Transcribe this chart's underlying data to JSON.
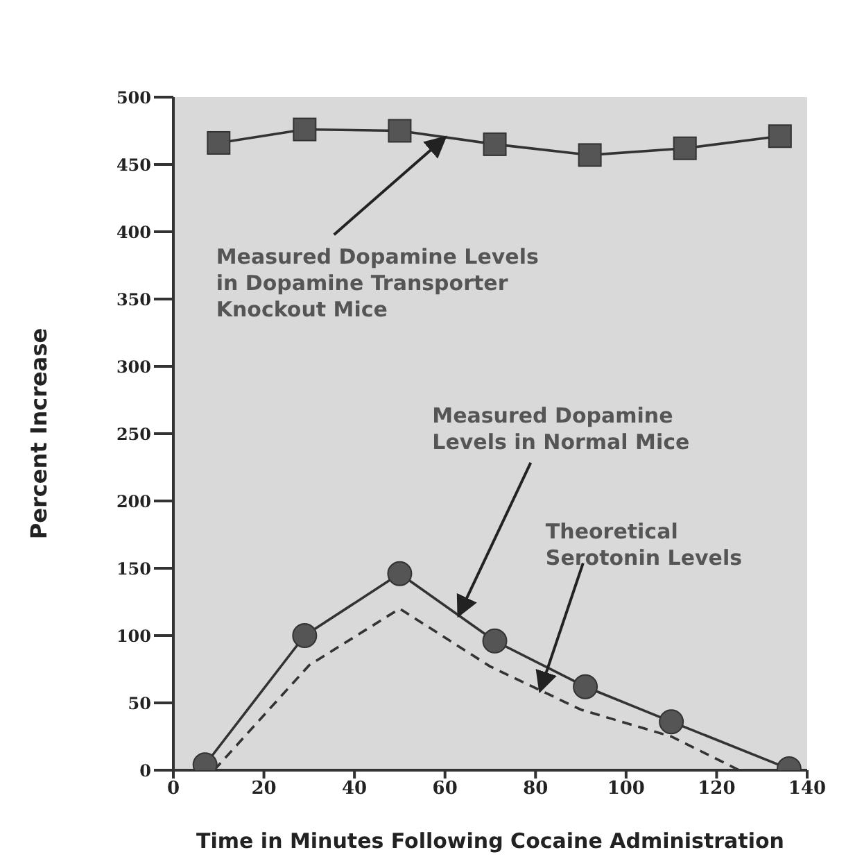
{
  "chart_data": {
    "type": "line",
    "xlabel": "Time in Minutes Following Cocaine Administration",
    "ylabel": "Percent Increase",
    "xlim": [
      0,
      140
    ],
    "xticks": [
      0,
      20,
      40,
      60,
      80,
      100,
      120,
      140
    ],
    "ylim": [
      0,
      500
    ],
    "yticks": [
      0,
      50,
      100,
      150,
      200,
      250,
      300,
      350,
      400,
      450,
      500
    ],
    "grid": false,
    "series": [
      {
        "color": "#333333",
        "marker": "square",
        "line_style": "solid",
        "x": [
          10,
          29,
          50,
          71,
          92,
          113,
          134
        ],
        "values": [
          466,
          476,
          475,
          465,
          457,
          462,
          471
        ]
      },
      {
        "color": "#333333",
        "marker": "circle",
        "line_style": "solid",
        "x": [
          7,
          29,
          50,
          71,
          91,
          110,
          136
        ],
        "values": [
          4,
          100,
          146,
          96,
          62,
          36,
          1
        ]
      },
      {
        "color": "#333333",
        "marker": "none",
        "line_style": "dashed",
        "x": [
          9,
          30,
          50,
          70,
          90,
          110,
          125
        ],
        "values": [
          0,
          78,
          120,
          77,
          45,
          25,
          0
        ]
      }
    ],
    "annotations": [
      {
        "text": "Measured Dopamine Levels\nin Dopamine Transporter\nKnockout Mice",
        "x": 60,
        "y": 470
      },
      {
        "text": "Measured Dopamine\nLevels in Normal Mice",
        "x": 63,
        "y": 115
      },
      {
        "text": "Theoretical\nSerotonin Levels",
        "x": 81,
        "y": 59
      }
    ]
  }
}
